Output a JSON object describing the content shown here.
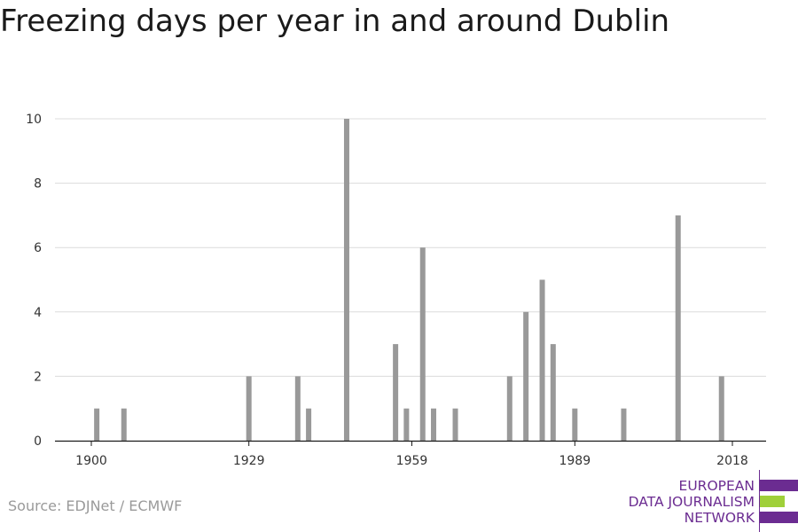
{
  "source": "Source: EDJNet / ECMWF",
  "logo": {
    "lines": [
      "EUROPEAN",
      "DATA JOURNALISM",
      "NETWORK"
    ],
    "purple": "#6b2c91",
    "green": "#9fd03a"
  },
  "chart_data": {
    "type": "bar",
    "title": "Freezing days per year in and around Dublin",
    "xlabel": "",
    "ylabel": "",
    "xlim": [
      1900,
      2018
    ],
    "ylim": [
      0,
      10
    ],
    "x_ticks": [
      1900,
      1929,
      1959,
      1989,
      2018
    ],
    "y_ticks": [
      0,
      2,
      4,
      6,
      8,
      10
    ],
    "grid": true,
    "bar_color": "#999999",
    "x": [
      1901,
      1906,
      1929,
      1938,
      1940,
      1947,
      1956,
      1958,
      1961,
      1963,
      1967,
      1977,
      1980,
      1983,
      1985,
      1989,
      1998,
      2008,
      2016
    ],
    "values": [
      1,
      1,
      2,
      2,
      1,
      10,
      3,
      1,
      6,
      1,
      1,
      2,
      4,
      5,
      3,
      1,
      1,
      7,
      2
    ]
  }
}
